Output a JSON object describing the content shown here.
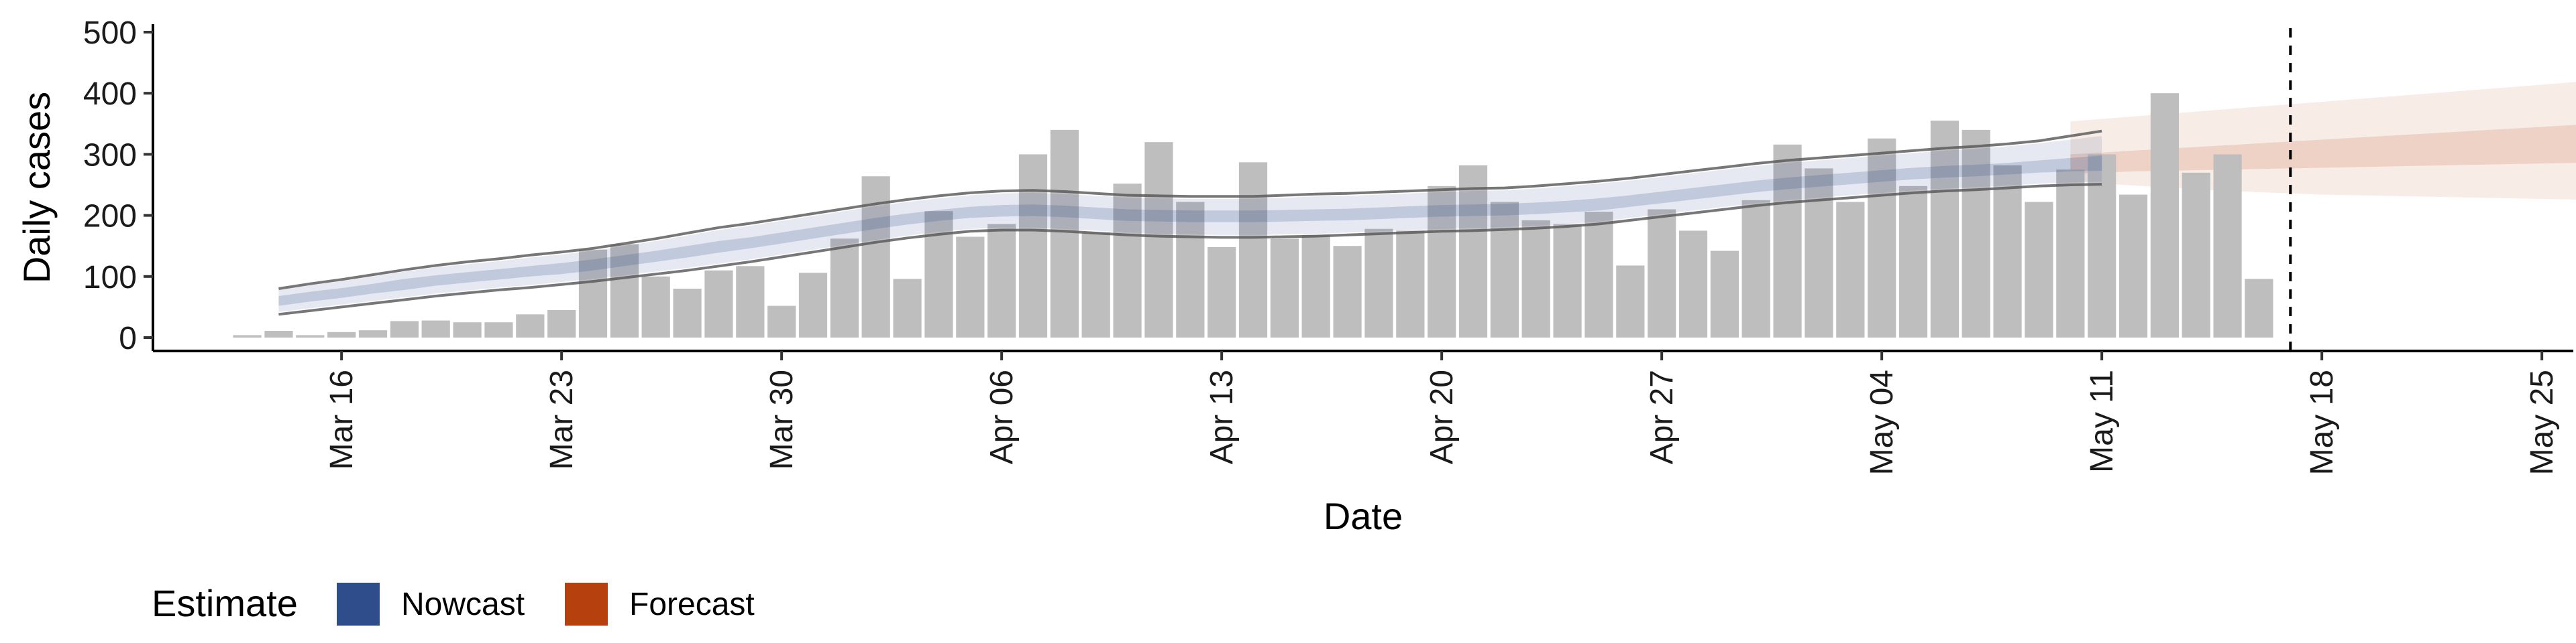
{
  "chart_data": {
    "type": "bar",
    "xlabel": "Date",
    "ylabel": "Daily cases",
    "ylim": [
      0,
      500
    ],
    "yticks": [
      0,
      100,
      200,
      300,
      400,
      500
    ],
    "xlim": [
      "2020-03-10",
      "2020-05-26"
    ],
    "xticks": [
      {
        "date": "2020-03-16",
        "label": "Mar 16"
      },
      {
        "date": "2020-03-23",
        "label": "Mar 23"
      },
      {
        "date": "2020-03-30",
        "label": "Mar 30"
      },
      {
        "date": "2020-04-06",
        "label": "Apr 06"
      },
      {
        "date": "2020-04-13",
        "label": "Apr 13"
      },
      {
        "date": "2020-04-20",
        "label": "Apr 20"
      },
      {
        "date": "2020-04-27",
        "label": "Apr 27"
      },
      {
        "date": "2020-05-04",
        "label": "May 04"
      },
      {
        "date": "2020-05-11",
        "label": "May 11"
      },
      {
        "date": "2020-05-18",
        "label": "May 18"
      },
      {
        "date": "2020-05-25",
        "label": "May 25"
      }
    ],
    "bars": {
      "start_date": "2020-03-13",
      "values": [
        4,
        11,
        4,
        9,
        12,
        27,
        28,
        25,
        25,
        38,
        45,
        144,
        153,
        100,
        80,
        110,
        117,
        52,
        106,
        162,
        264,
        96,
        207,
        165,
        186,
        300,
        340,
        172,
        252,
        320,
        222,
        148,
        287,
        162,
        168,
        150,
        178,
        175,
        248,
        282,
        222,
        192,
        186,
        206,
        118,
        210,
        175,
        142,
        225,
        316,
        277,
        222,
        326,
        248,
        355,
        340,
        282,
        222,
        275,
        300,
        234,
        400,
        270,
        300,
        96
      ],
      "color": "#bebebe"
    },
    "series": [
      {
        "name": "Nowcast",
        "color": "#2f4d8a",
        "start_date": "2020-03-14",
        "median": [
          60,
          67,
          73,
          80,
          87,
          93,
          98,
          103,
          108,
          113,
          119,
          126,
          133,
          140,
          148,
          155,
          163,
          171,
          179,
          187,
          194,
          200,
          205,
          207,
          208,
          206,
          203,
          200,
          199,
          198,
          198,
          198,
          199,
          200,
          201,
          203,
          205,
          207,
          208,
          209,
          211,
          214,
          217,
          223,
          229,
          235,
          241,
          247,
          252,
          256,
          260,
          264,
          268,
          271,
          273,
          276,
          279,
          281,
          283
        ],
        "ci90": [
          [
            42,
            48,
            54,
            60,
            66,
            72,
            77,
            82,
            86,
            91,
            96,
            102,
            108,
            114,
            121,
            128,
            136,
            144,
            152,
            160,
            167,
            173,
            178,
            180,
            180,
            178,
            175,
            172,
            170,
            169,
            168,
            168,
            169,
            170,
            172,
            174,
            176,
            178,
            179,
            181,
            183,
            186,
            190,
            196,
            202,
            208,
            214,
            220,
            225,
            229,
            233,
            237,
            241,
            244,
            246,
            249,
            252,
            254,
            255
          ],
          [
            78,
            86,
            92,
            100,
            108,
            115,
            120,
            125,
            131,
            136,
            142,
            150,
            158,
            167,
            176,
            183,
            191,
            199,
            207,
            215,
            222,
            228,
            233,
            236,
            237,
            235,
            232,
            229,
            228,
            227,
            227,
            227,
            229,
            231,
            232,
            234,
            236,
            238,
            240,
            241,
            244,
            248,
            252,
            257,
            263,
            269,
            275,
            281,
            286,
            290,
            294,
            298,
            302,
            306,
            309,
            313,
            318,
            324,
            330
          ]
        ],
        "ci50": [
          [
            52,
            59,
            65,
            72,
            78,
            85,
            90,
            95,
            100,
            104,
            110,
            117,
            124,
            131,
            139,
            146,
            154,
            162,
            170,
            178,
            185,
            191,
            196,
            198,
            199,
            197,
            194,
            191,
            190,
            189,
            189,
            189,
            190,
            191,
            192,
            194,
            196,
            198,
            199,
            200,
            202,
            205,
            208,
            214,
            220,
            226,
            232,
            238,
            243,
            247,
            251,
            255,
            259,
            262,
            264,
            267,
            270,
            272,
            273
          ],
          [
            68,
            75,
            81,
            88,
            96,
            102,
            107,
            112,
            117,
            122,
            128,
            135,
            142,
            150,
            158,
            164,
            172,
            180,
            188,
            196,
            203,
            209,
            214,
            217,
            218,
            216,
            213,
            210,
            209,
            208,
            208,
            208,
            209,
            210,
            211,
            213,
            215,
            217,
            218,
            219,
            221,
            224,
            228,
            233,
            239,
            245,
            251,
            257,
            262,
            266,
            270,
            274,
            278,
            281,
            283,
            286,
            290,
            294,
            298
          ]
        ],
        "outer": [
          [
            38,
            44,
            50,
            56,
            62,
            68,
            73,
            78,
            82,
            87,
            92,
            98,
            104,
            110,
            117,
            124,
            132,
            140,
            148,
            156,
            163,
            169,
            174,
            176,
            176,
            174,
            171,
            168,
            166,
            165,
            164,
            164,
            165,
            166,
            168,
            170,
            172,
            174,
            175,
            177,
            179,
            182,
            186,
            192,
            198,
            204,
            210,
            216,
            221,
            225,
            229,
            233,
            237,
            240,
            242,
            245,
            248,
            250,
            251
          ],
          [
            80,
            88,
            95,
            103,
            111,
            118,
            124,
            129,
            135,
            140,
            146,
            154,
            162,
            171,
            180,
            187,
            195,
            203,
            211,
            219,
            226,
            232,
            237,
            240,
            241,
            239,
            236,
            233,
            232,
            231,
            231,
            231,
            233,
            235,
            236,
            238,
            240,
            242,
            244,
            245,
            248,
            252,
            256,
            261,
            267,
            273,
            279,
            285,
            290,
            294,
            298,
            302,
            306,
            310,
            313,
            317,
            322,
            330,
            338
          ]
        ]
      },
      {
        "name": "Forecast",
        "color": "#b7410e",
        "start_date": "2020-05-10",
        "median": [
          282,
          284,
          286,
          288,
          290,
          292,
          294,
          296,
          298,
          300,
          302,
          304,
          306,
          308,
          310,
          312,
          314,
          316,
          318,
          320,
          322,
          324,
          326,
          328,
          330,
          332,
          334
        ],
        "ci90": [
          [
            256,
            252,
            249,
            246,
            243,
            240,
            238,
            236,
            234,
            233,
            232,
            231,
            230,
            229,
            228,
            227,
            226,
            225,
            224,
            223,
            222,
            221,
            220,
            219,
            218,
            217,
            216
          ],
          [
            354,
            358,
            362,
            366,
            370,
            374,
            378,
            382,
            386,
            390,
            394,
            398,
            402,
            406,
            410,
            414,
            418,
            422,
            426,
            432,
            440,
            448,
            456,
            462,
            468,
            474,
            480
          ]
        ],
        "ci50": [
          [
            268,
            270,
            272,
            273,
            274,
            275,
            276,
            277,
            278,
            279,
            280,
            281,
            282,
            283,
            284,
            285,
            286,
            286,
            287,
            287,
            288,
            288,
            288,
            288,
            288,
            288,
            288
          ],
          [
            300,
            303,
            306,
            309,
            312,
            315,
            318,
            321,
            324,
            327,
            330,
            333,
            336,
            339,
            342,
            345,
            348,
            351,
            354,
            357,
            360,
            366,
            372,
            378,
            384,
            390,
            396
          ]
        ]
      }
    ],
    "vline": {
      "date": "2020-05-17",
      "style": "dashed"
    },
    "legend": {
      "title": "Estimate",
      "position": "bottom-left",
      "items": [
        {
          "label": "Nowcast",
          "color": "#2f4d8a"
        },
        {
          "label": "Forecast",
          "color": "#b7410e"
        }
      ]
    },
    "grid": false
  }
}
